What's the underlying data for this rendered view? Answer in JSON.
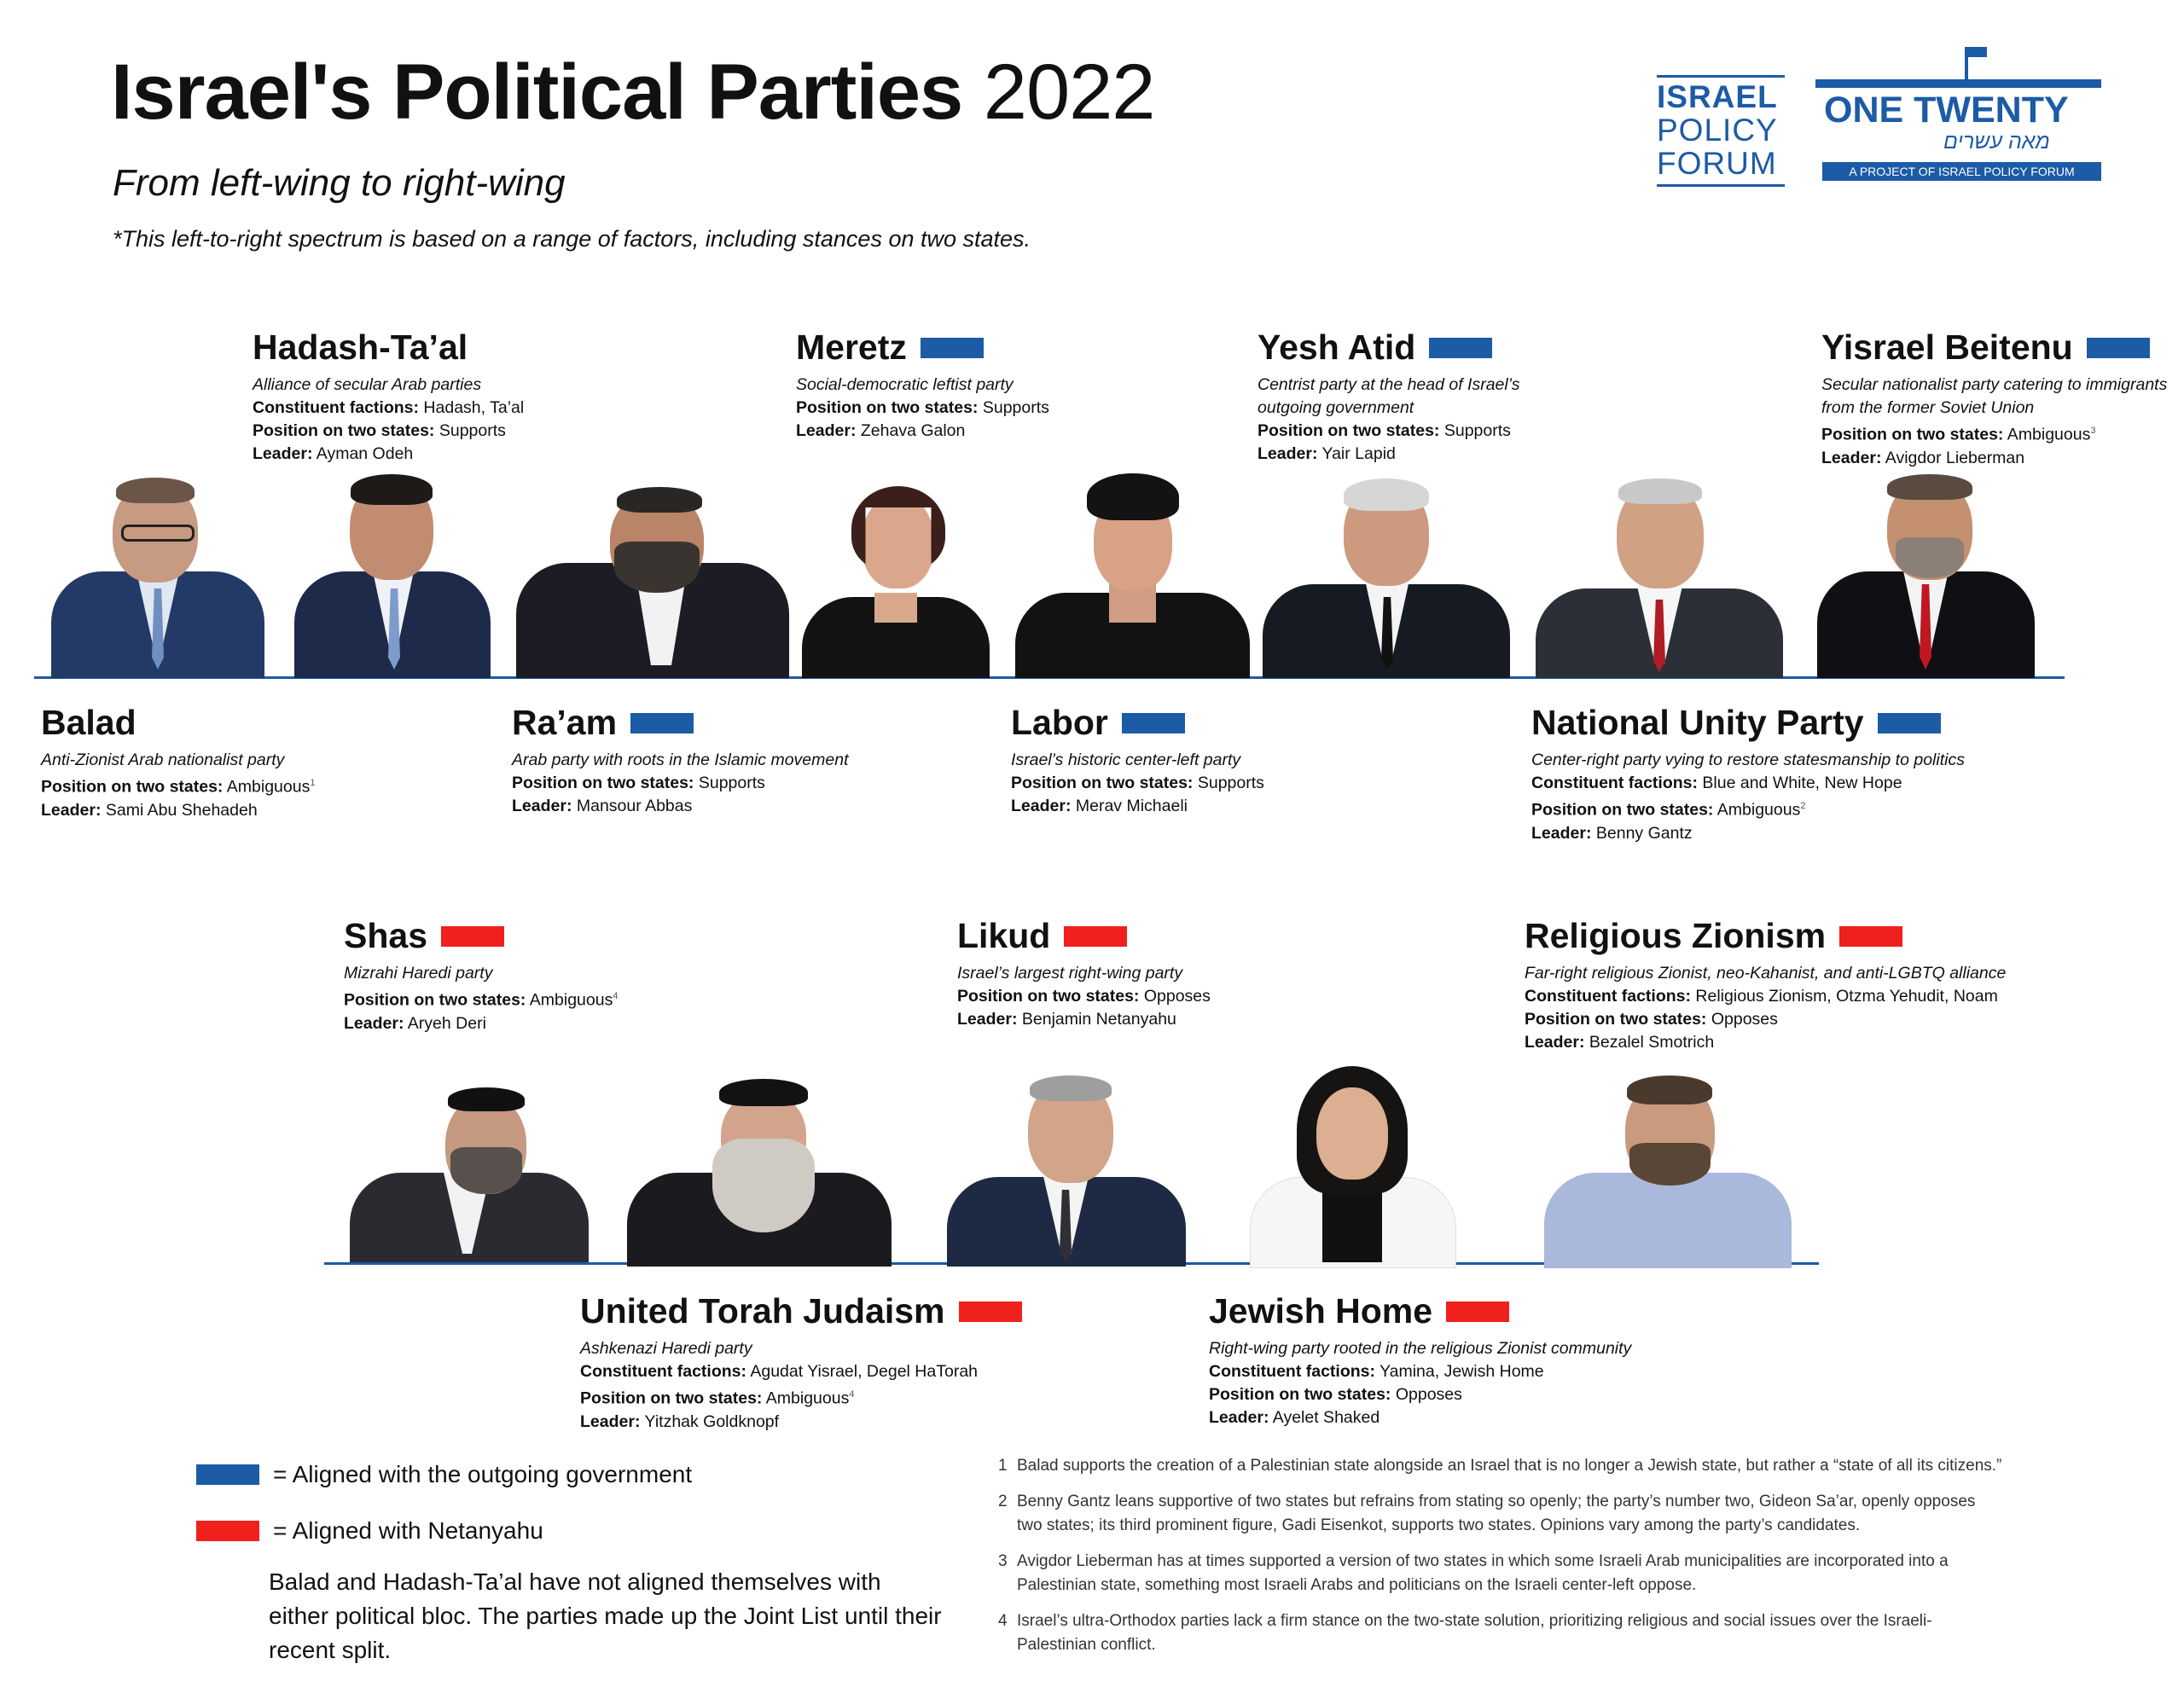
{
  "header": {
    "title_bold": "Israel's Political Parties",
    "title_year": "2022",
    "subtitle": "From left-wing to right-wing",
    "note": "*This left-to-right spectrum is based on a range of factors, including stances on two states."
  },
  "logos": {
    "ipf_line1": "ISRAEL",
    "ipf_line2": "POLICY",
    "ipf_line3": "FORUM",
    "ot_name": "ONE TWENTY",
    "ot_hebrew": "מאה עשרים",
    "ot_tagline": "A PROJECT OF ISRAEL POLICY FORUM"
  },
  "colors": {
    "outgoing": "#1c5ba6",
    "netanyahu": "#f0201c",
    "line": "#1c5ba6"
  },
  "labels": {
    "factions": "Constituent factions:",
    "position": "Position on two states:",
    "leader": "Leader:"
  },
  "parties": {
    "hadash": {
      "name": "Hadash-Ta’al",
      "description": "Alliance of secular Arab parties",
      "factions": "Hadash, Ta’al",
      "position": "Supports",
      "leader": "Ayman Odeh"
    },
    "meretz": {
      "name": "Meretz",
      "description": "Social-democratic leftist party",
      "position": "Supports",
      "leader": "Zehava Galon"
    },
    "yesh_atid": {
      "name": "Yesh Atid",
      "description_1": "Centrist party at the head of Israel’s",
      "description_2": "outgoing government",
      "position": "Supports",
      "leader": "Yair Lapid"
    },
    "yisrael_beitenu": {
      "name": "Yisrael Beitenu",
      "description_1": "Secular nationalist party catering to immigrants",
      "description_2": "from the former Soviet Union",
      "position": "Ambiguous",
      "footnote": "3",
      "leader": "Avigdor Lieberman"
    },
    "balad": {
      "name": "Balad",
      "description": "Anti-Zionist Arab nationalist party",
      "position": "Ambiguous",
      "footnote": "1",
      "leader": "Sami Abu Shehadeh"
    },
    "raam": {
      "name": "Ra’am",
      "description": "Arab party with roots in the Islamic movement",
      "position": "Supports",
      "leader": "Mansour Abbas"
    },
    "labor": {
      "name": "Labor",
      "description": "Israel’s historic center-left party",
      "position": "Supports",
      "leader": "Merav Michaeli"
    },
    "national_unity": {
      "name": "National Unity Party",
      "description": "Center-right party vying to restore statesmanship to politics",
      "factions": "Blue and White, New Hope",
      "position": "Ambiguous",
      "footnote": "2",
      "leader": "Benny Gantz"
    },
    "shas": {
      "name": "Shas",
      "description": "Mizrahi Haredi party",
      "position": "Ambiguous",
      "footnote": "4",
      "leader": "Aryeh Deri"
    },
    "likud": {
      "name": "Likud",
      "description": "Israel’s largest right-wing party",
      "position": "Opposes",
      "leader": "Benjamin Netanyahu"
    },
    "religious_zionism": {
      "name": "Religious Zionism",
      "description": "Far-right religious Zionist, neo-Kahanist, and anti-LGBTQ alliance",
      "factions": "Religious Zionism, Otzma Yehudit, Noam",
      "position": "Opposes",
      "leader": "Bezalel Smotrich"
    },
    "utj": {
      "name": "United Torah Judaism",
      "description": "Ashkenazi Haredi party",
      "factions": "Agudat Yisrael, Degel HaTorah",
      "position": "Ambiguous",
      "footnote": "4",
      "leader": "Yitzhak Goldknopf"
    },
    "jewish_home": {
      "name": "Jewish Home",
      "description": "Right-wing party rooted in the religious Zionist community",
      "factions": "Yamina, Jewish Home",
      "position": "Opposes",
      "leader": "Ayelet Shaked"
    }
  },
  "legend": {
    "blue": "= Aligned with the outgoing government",
    "red": "= Aligned with Netanyahu",
    "note": "Balad and Hadash-Ta’al have not aligned themselves with either political bloc. The parties made up the Joint List until their recent split."
  },
  "footnotes": [
    {
      "n": "1",
      "text": "Balad supports the creation of a Palestinian state alongside an Israel that is no longer a Jewish state, but rather a “state of all its citizens.”"
    },
    {
      "n": "2",
      "text": "Benny Gantz leans supportive of two states but refrains from stating so openly; the party’s number two, Gideon Sa’ar, openly opposes two states; its third prominent figure, Gadi Eisenkot, supports two states. Opinions vary among the party’s candidates."
    },
    {
      "n": "3",
      "text": "Avigdor Lieberman has at times supported a version of two states in which some Israeli Arab municipalities are incorporated into a Palestinian state, something most Israeli Arabs and politicians on the Israeli center-left oppose."
    },
    {
      "n": "4",
      "text": "Israel’s ultra-Orthodox parties lack a firm stance on the two-state solution, prioritizing religious and social issues over the Israeli-Palestinian conflict."
    }
  ]
}
